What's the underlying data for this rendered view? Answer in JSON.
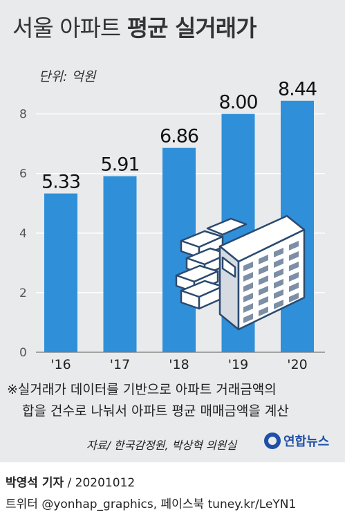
{
  "title": {
    "light": "서울 아파트",
    "bold": "평균 실거래가"
  },
  "unit_label": "단위: 억원",
  "colors": {
    "bar": "#2f8fd8",
    "panel": "#e9eaec",
    "grid": "#ffffff",
    "text": "#222222",
    "logo": "#1f4fa6"
  },
  "chart_data": {
    "type": "bar",
    "title": "서울 아파트 평균 실거래가",
    "unit": "단위: 억원",
    "categories": [
      "'16",
      "'17",
      "'18",
      "'19",
      "'20"
    ],
    "values": [
      5.33,
      5.91,
      6.86,
      8.0,
      8.44
    ],
    "value_labels": [
      "5.33",
      "5.91",
      "6.86",
      "8.00",
      "8.44"
    ],
    "yticks": [
      0,
      2,
      4,
      6,
      8
    ],
    "ylim": [
      0,
      9.2
    ],
    "grid": true,
    "xlabel": "",
    "ylabel": ""
  },
  "illustration": "apartment-buildings-icon",
  "note": {
    "line1": "※실거래가 데이터를 기반으로 아파트 거래금액의",
    "line2": "합을 건수로 나눠서 아파트 평균 매매금액을 계산"
  },
  "source": "자료/ 한국감정원, 박상혁 의원실",
  "logo": "연합뉴스",
  "byline": {
    "reporter": "박영석 기자",
    "separator": " / ",
    "date": "20201012"
  },
  "social": "트위터 @yonhap_graphics, 페이스북 tuney.kr/LeYN1"
}
